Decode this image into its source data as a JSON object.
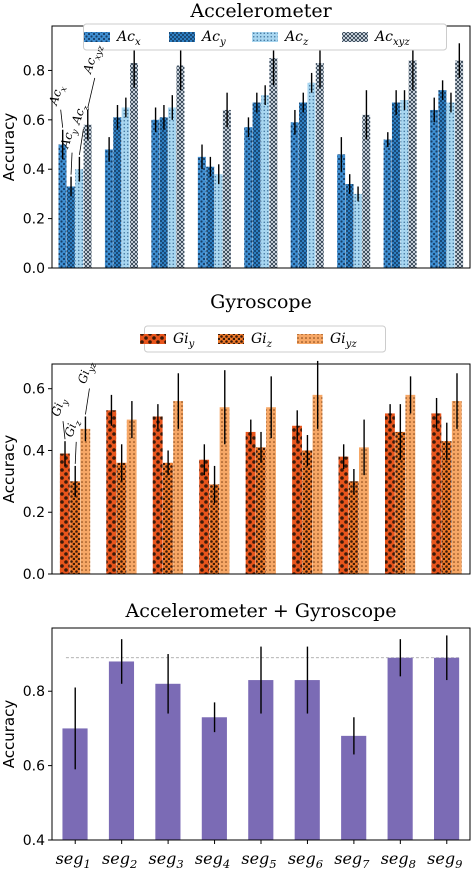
{
  "chart_data": [
    {
      "type": "bar",
      "title": "Accelerometer",
      "ylabel": "Accuracy",
      "ylim": [
        0,
        0.98
      ],
      "yticks": [
        "0.0",
        "0.2",
        "0.4",
        "0.6",
        "0.8"
      ],
      "grid": false,
      "legend": "top",
      "categories": [
        "seg1",
        "seg2",
        "seg3",
        "seg4",
        "seg5",
        "seg6",
        "seg7",
        "seg8",
        "seg9"
      ],
      "series": [
        {
          "name": "Ac",
          "sub": "x",
          "color": "#3f8fd2",
          "values": [
            0.5,
            0.48,
            0.6,
            0.45,
            0.57,
            0.59,
            0.46,
            0.52,
            0.64
          ],
          "err": [
            0.06,
            0.05,
            0.05,
            0.05,
            0.04,
            0.05,
            0.07,
            0.03,
            0.05
          ]
        },
        {
          "name": "Ac",
          "sub": "y",
          "color": "#2e7fc2",
          "values": [
            0.33,
            0.61,
            0.61,
            0.41,
            0.67,
            0.67,
            0.34,
            0.67,
            0.72
          ],
          "err": [
            0.04,
            0.05,
            0.05,
            0.04,
            0.04,
            0.04,
            0.04,
            0.05,
            0.04
          ]
        },
        {
          "name": "Ac",
          "sub": "z",
          "color": "#a8d6f0",
          "values": [
            0.4,
            0.65,
            0.65,
            0.38,
            0.7,
            0.75,
            0.3,
            0.68,
            0.67
          ],
          "err": [
            0.05,
            0.04,
            0.05,
            0.04,
            0.04,
            0.04,
            0.03,
            0.04,
            0.04
          ]
        },
        {
          "name": "Ac",
          "sub": "xyz",
          "color": "#e6eef6",
          "values": [
            0.58,
            0.83,
            0.82,
            0.64,
            0.85,
            0.83,
            0.62,
            0.84,
            0.84
          ],
          "err": [
            0.06,
            0.1,
            0.1,
            0.07,
            0.11,
            0.1,
            0.1,
            0.12,
            0.07
          ]
        }
      ],
      "annotations": [
        {
          "text": "Ac",
          "sub": "x"
        },
        {
          "text": "Ac",
          "sub": "y"
        },
        {
          "text": "Ac",
          "sub": "z"
        },
        {
          "text": "Ac",
          "sub": "xyz"
        }
      ]
    },
    {
      "type": "bar",
      "title": "Gyroscope",
      "ylabel": "Accuracy",
      "ylim": [
        0,
        0.68
      ],
      "yticks": [
        "0.0",
        "0.2",
        "0.4",
        "0.6"
      ],
      "grid": false,
      "legend": "top",
      "categories": [
        "seg1",
        "seg2",
        "seg3",
        "seg4",
        "seg5",
        "seg6",
        "seg7",
        "seg8",
        "seg9"
      ],
      "series": [
        {
          "name": "Gi",
          "sub": "y",
          "color": "#e8551c",
          "values": [
            0.39,
            0.53,
            0.51,
            0.37,
            0.46,
            0.48,
            0.38,
            0.52,
            0.52
          ],
          "err": [
            0.04,
            0.05,
            0.04,
            0.05,
            0.04,
            0.05,
            0.04,
            0.03,
            0.05
          ]
        },
        {
          "name": "Gi",
          "sub": "z",
          "color": "#f07a2a",
          "values": [
            0.3,
            0.36,
            0.36,
            0.29,
            0.41,
            0.4,
            0.3,
            0.46,
            0.43
          ],
          "err": [
            0.05,
            0.06,
            0.04,
            0.06,
            0.05,
            0.05,
            0.04,
            0.09,
            0.06
          ]
        },
        {
          "name": "Gi",
          "sub": "yz",
          "color": "#f6a766",
          "values": [
            0.47,
            0.5,
            0.56,
            0.54,
            0.54,
            0.58,
            0.41,
            0.58,
            0.56
          ],
          "err": [
            0.04,
            0.06,
            0.09,
            0.12,
            0.1,
            0.11,
            0.09,
            0.06,
            0.09
          ]
        }
      ],
      "annotations": [
        {
          "text": "Gi",
          "sub": "y"
        },
        {
          "text": "Gi",
          "sub": "z"
        },
        {
          "text": "Gi",
          "sub": "yz"
        }
      ]
    },
    {
      "type": "bar",
      "title": "Accelerometer + Gyroscope",
      "ylabel": "Accuracy",
      "ylim": [
        0.4,
        0.97
      ],
      "yticks": [
        "0.4",
        "0.6",
        "0.8"
      ],
      "grid": false,
      "reference_line": 0.89,
      "categories": [
        "seg1",
        "seg2",
        "seg3",
        "seg4",
        "seg5",
        "seg6",
        "seg7",
        "seg8",
        "seg9"
      ],
      "category_labels": [
        {
          "base": "seg",
          "sub": "1"
        },
        {
          "base": "seg",
          "sub": "2"
        },
        {
          "base": "seg",
          "sub": "3"
        },
        {
          "base": "seg",
          "sub": "4"
        },
        {
          "base": "seg",
          "sub": "5"
        },
        {
          "base": "seg",
          "sub": "6"
        },
        {
          "base": "seg",
          "sub": "7"
        },
        {
          "base": "seg",
          "sub": "8"
        },
        {
          "base": "seg",
          "sub": "9"
        }
      ],
      "series": [
        {
          "color": "#7b6bb5",
          "values": [
            0.7,
            0.88,
            0.82,
            0.73,
            0.83,
            0.83,
            0.68,
            0.89,
            0.89
          ],
          "err": [
            0.11,
            0.06,
            0.08,
            0.04,
            0.09,
            0.09,
            0.05,
            0.05,
            0.06
          ]
        }
      ]
    }
  ]
}
